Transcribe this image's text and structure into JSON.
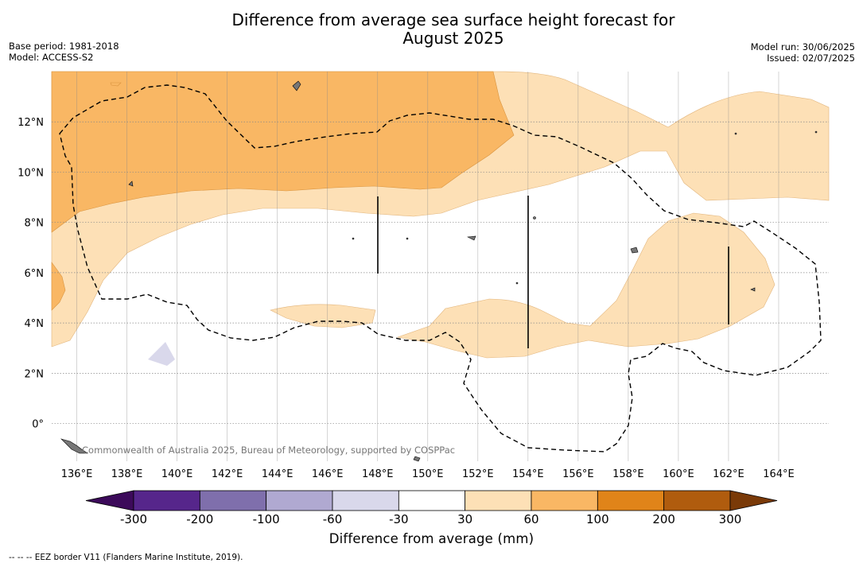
{
  "title_line1": "Difference from average sea surface height forecast for",
  "title_line2": "August 2025",
  "base_period": "Base period: 1981-2018",
  "model": "Model: ACCESS-S2",
  "model_run": "Model run: 30/06/2025",
  "issued": "Issued: 02/07/2025",
  "copyright": "Commonwealth of Australia 2025, Bureau of Meteorology, supported by COSPPac",
  "map": {
    "lon_range": [
      135,
      166
    ],
    "lat_range": [
      -1.5,
      14
    ],
    "lon_ticks": [
      "136°E",
      "138°E",
      "140°E",
      "142°E",
      "144°E",
      "146°E",
      "148°E",
      "150°E",
      "152°E",
      "154°E",
      "156°E",
      "158°E",
      "160°E",
      "162°E",
      "164°E"
    ],
    "lat_ticks": [
      "0°",
      "2°N",
      "4°N",
      "6°N",
      "8°N",
      "10°N",
      "12°N"
    ],
    "grid": true
  },
  "colorbar": {
    "label": "Difference from average (mm)",
    "ticks": [
      "-300",
      "-200",
      "-100",
      "-60",
      "-30",
      "30",
      "60",
      "100",
      "200",
      "300"
    ],
    "colors": [
      "#3c0a5a",
      "#56268b",
      "#7f6fac",
      "#b0a9d1",
      "#d9d8eb",
      "#ffffff",
      "#fde0b6",
      "#f9b764",
      "#e08419",
      "#b05c0e",
      "#7a3a08"
    ]
  },
  "legend_note": "--  --  -- EEZ border V11 (Flanders Marine Institute, 2019)."
}
